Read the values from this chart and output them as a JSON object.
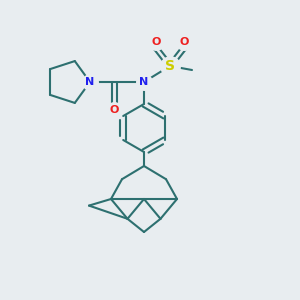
{
  "background_color": "#e8edf0",
  "bond_color": "#2d7070",
  "bond_width": 1.5,
  "atom_colors": {
    "N": "#2020ee",
    "O": "#ee2020",
    "S": "#cccc00"
  },
  "figsize": [
    3.0,
    3.0
  ],
  "dpi": 100,
  "atom_bg": "#e8edf0"
}
